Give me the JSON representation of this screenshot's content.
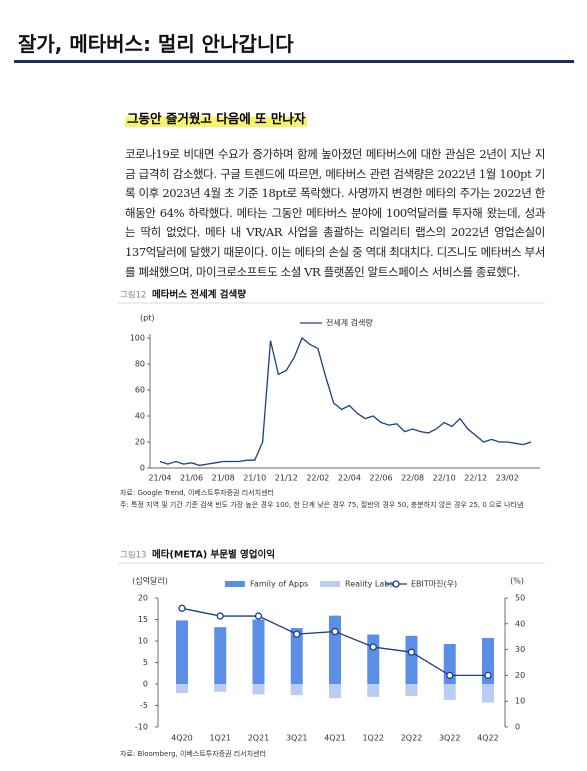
{
  "header": {
    "title": "잘가, 메타버스: 멀리 안나갑니다"
  },
  "section_title": "그동안 즐거웠고 다음에 또 만나자",
  "paragraph": "코로나19로 비대면 수요가 증가하며 함께 높아졌던 메타버스에 대한 관심은 2년이 지난 지금 급격히 감소했다. 구글 트렌드에 따르면, 메타버스 관련 검색량은 2022년 1월 100pt 기록 이후 2023년 4월 초 기준 18pt로 폭락했다. 사명까지 변경한 메타의 주가는 2022년 한 해동안 64% 하락했다. 메타는 그동안 메타버스 분야에 100억달러를 투자해 왔는데, 성과는 딱히 없었다. 메타 내 VR/AR 사업을 총괄하는 리얼리티 랩스의 2022년 영업손실이 137억달러에 달했기 때문이다. 이는 메타의 손실 중 역대 최대치다. 디즈니도 메타버스 부서를 폐쇄했으며, 마이크로소프트도 소셜 VR 플랫폼인 알트스페이스 서비스를 종료했다.",
  "chart_data": [
    {
      "type": "line",
      "figure_label": "그림12",
      "title": "메타버스 전세계 검색량",
      "y_label": "(pt)",
      "categories": [
        "21/04",
        null,
        null,
        null,
        "21/06",
        null,
        null,
        null,
        "21/08",
        null,
        null,
        null,
        "21/10",
        null,
        null,
        null,
        "21/12",
        null,
        null,
        null,
        "22/02",
        null,
        null,
        null,
        "22/04",
        null,
        null,
        null,
        "22/06",
        null,
        null,
        null,
        "22/08",
        null,
        null,
        null,
        "22/10",
        null,
        null,
        null,
        "22/12",
        null,
        null,
        null,
        "23/02",
        null,
        null,
        null
      ],
      "series": [
        {
          "name": "전세계 검색량",
          "color": "#1f3c88",
          "values": [
            5,
            3,
            5,
            3,
            4,
            2,
            3,
            4,
            5,
            5,
            5,
            6,
            6,
            20,
            98,
            72,
            75,
            85,
            100,
            95,
            92,
            70,
            50,
            45,
            48,
            42,
            38,
            40,
            35,
            33,
            34,
            28,
            30,
            28,
            27,
            30,
            35,
            32,
            38,
            30,
            25,
            20,
            22,
            20,
            20,
            19,
            18,
            20
          ]
        }
      ],
      "ylim": [
        0,
        100
      ],
      "yticks": [
        0,
        20,
        40,
        60,
        80,
        100
      ],
      "legend": "top",
      "source": "자료: Google Trend, 이베스트투자증권 리서치센터",
      "note": "주: 특정 지역 및 기간 기준 검색 빈도 가장 높은 경우 100, 한 단계 낮은 경우 75, 절반의 경우 50, 충분하지 않은 경우 25, 0 으로 나타냄"
    },
    {
      "type": "bar",
      "figure_label": "그림13",
      "title": "메타(META) 부문별 영업이익",
      "y_label": "(십억달러)",
      "y2_label": "(%)",
      "categories": [
        "4Q20",
        "1Q21",
        "2Q21",
        "3Q21",
        "4Q21",
        "1Q22",
        "2Q22",
        "3Q22",
        "4Q22"
      ],
      "series": [
        {
          "name": "Family of Apps",
          "color": "#5b8fe6",
          "values": [
            14.8,
            13.2,
            15.0,
            13.0,
            15.9,
            11.5,
            11.2,
            9.3,
            10.7
          ]
        },
        {
          "name": "Reality Labs",
          "color": "#b9cdf3",
          "values": [
            -2.1,
            -1.8,
            -2.4,
            -2.6,
            -3.3,
            -3.0,
            -2.8,
            -3.7,
            -4.3
          ]
        },
        {
          "name": "EBIT마진(우)",
          "color": "#1f3c88",
          "type": "line",
          "axis": "y2",
          "values": [
            46,
            43,
            43,
            36,
            37,
            31,
            29,
            20,
            20
          ]
        }
      ],
      "ylim": [
        -10,
        20
      ],
      "yticks": [
        -10,
        -5,
        0,
        5,
        10,
        15,
        20
      ],
      "y2lim": [
        0,
        50
      ],
      "y2ticks": [
        0,
        10,
        20,
        30,
        40,
        50
      ],
      "legend": "top",
      "source": "자료: Bloomberg, 이베스트투자증권 리서치센터"
    }
  ]
}
